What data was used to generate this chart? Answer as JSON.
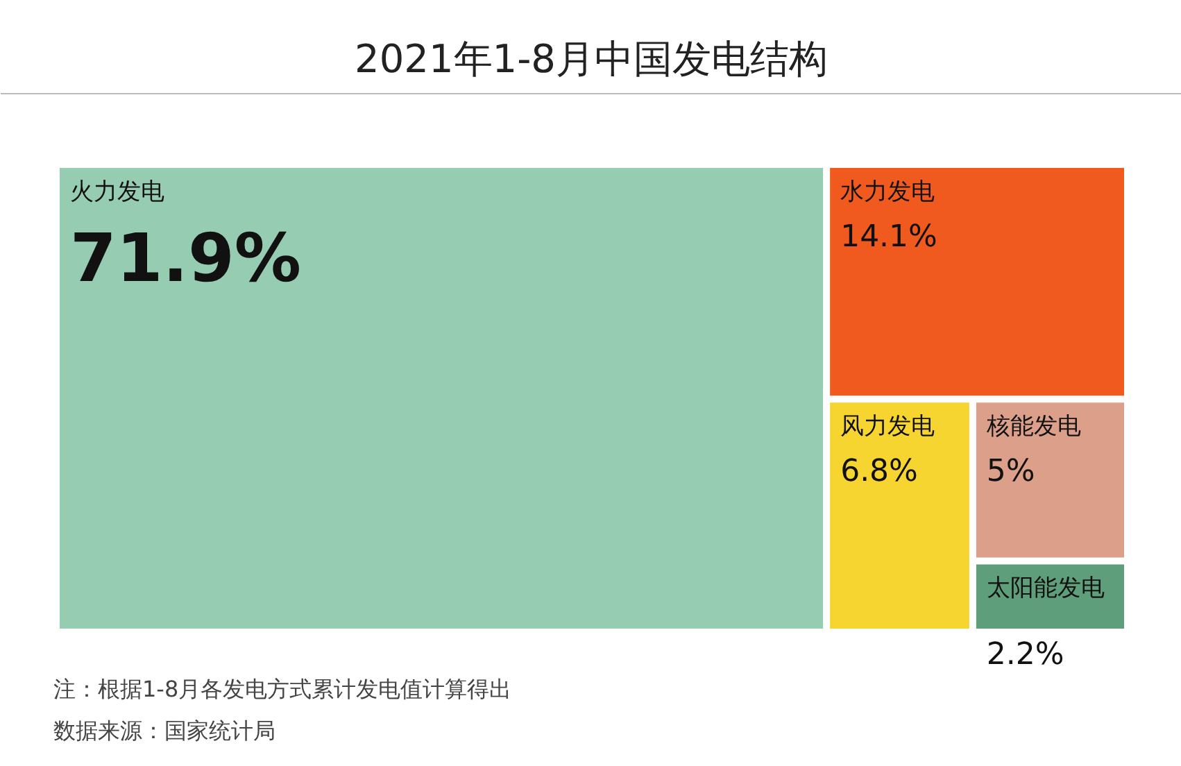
{
  "chart_data": {
    "type": "other",
    "title": "2021年1-8月中国发电结构",
    "categories": [
      "火力发电",
      "水力发电",
      "风力发电",
      "核能发电",
      "太阳能发电"
    ],
    "values": [
      71.9,
      14.1,
      6.8,
      5,
      2.2
    ],
    "value_labels": [
      "71.9%",
      "14.1%",
      "6.8%",
      "5%",
      "2.2%"
    ],
    "colors": [
      "#96cdb2",
      "#f15a1f",
      "#f7d531",
      "#dca08a",
      "#5e9e7a"
    ],
    "annotations": [
      "注：根据1-8月各发电方式累计发电值计算得出",
      "数据来源：国家统计局"
    ]
  }
}
